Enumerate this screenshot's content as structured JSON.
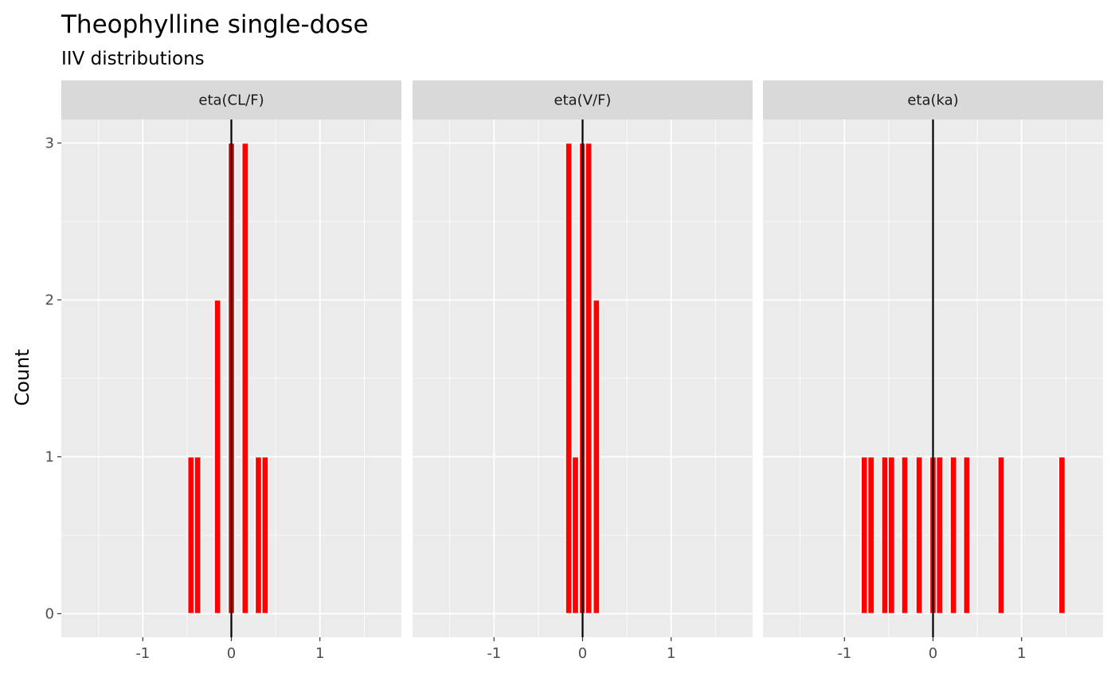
{
  "chart_data": {
    "type": "bar",
    "title": "Theophylline single-dose",
    "subtitle": "IIV distributions",
    "xlabel": "",
    "ylabel": "Count",
    "xlim": [
      -1.92,
      1.92
    ],
    "ylim": [
      -0.15,
      3.15
    ],
    "x_ticks": [
      -1,
      0,
      1
    ],
    "x_tick_labels": [
      "-1",
      "0",
      "1"
    ],
    "y_ticks": [
      0,
      1,
      2,
      3
    ],
    "y_tick_labels": [
      "0",
      "1",
      "2",
      "3"
    ],
    "bin_width": 0.075,
    "bar_fill": "#ff0000",
    "bar_outline": "#ffffff",
    "reference_line": {
      "x": 0,
      "color": "#000000"
    },
    "grid": true,
    "panel_background": "#ebebeb",
    "strip_background": "#d9d9d9",
    "panels": [
      {
        "label": "eta(CL/F)",
        "bars": [
          {
            "x": -0.456,
            "count": 1
          },
          {
            "x": -0.381,
            "count": 1
          },
          {
            "x": -0.156,
            "count": 2
          },
          {
            "x": 0.0,
            "count": 3
          },
          {
            "x": 0.156,
            "count": 3
          },
          {
            "x": 0.306,
            "count": 1
          },
          {
            "x": 0.381,
            "count": 1
          }
        ]
      },
      {
        "label": "eta(V/F)",
        "bars": [
          {
            "x": -0.156,
            "count": 3
          },
          {
            "x": -0.081,
            "count": 1
          },
          {
            "x": 0.0,
            "count": 3
          },
          {
            "x": 0.069,
            "count": 3
          },
          {
            "x": 0.156,
            "count": 2
          }
        ]
      },
      {
        "label": "eta(ka)",
        "bars": [
          {
            "x": -0.775,
            "count": 1
          },
          {
            "x": -0.7,
            "count": 1
          },
          {
            "x": -0.544,
            "count": 1
          },
          {
            "x": -0.469,
            "count": 1
          },
          {
            "x": -0.319,
            "count": 1
          },
          {
            "x": -0.156,
            "count": 1
          },
          {
            "x": 0.0,
            "count": 1
          },
          {
            "x": 0.075,
            "count": 1
          },
          {
            "x": 0.231,
            "count": 1
          },
          {
            "x": 0.381,
            "count": 1
          },
          {
            "x": 0.769,
            "count": 1
          },
          {
            "x": 1.456,
            "count": 1
          }
        ]
      }
    ]
  }
}
